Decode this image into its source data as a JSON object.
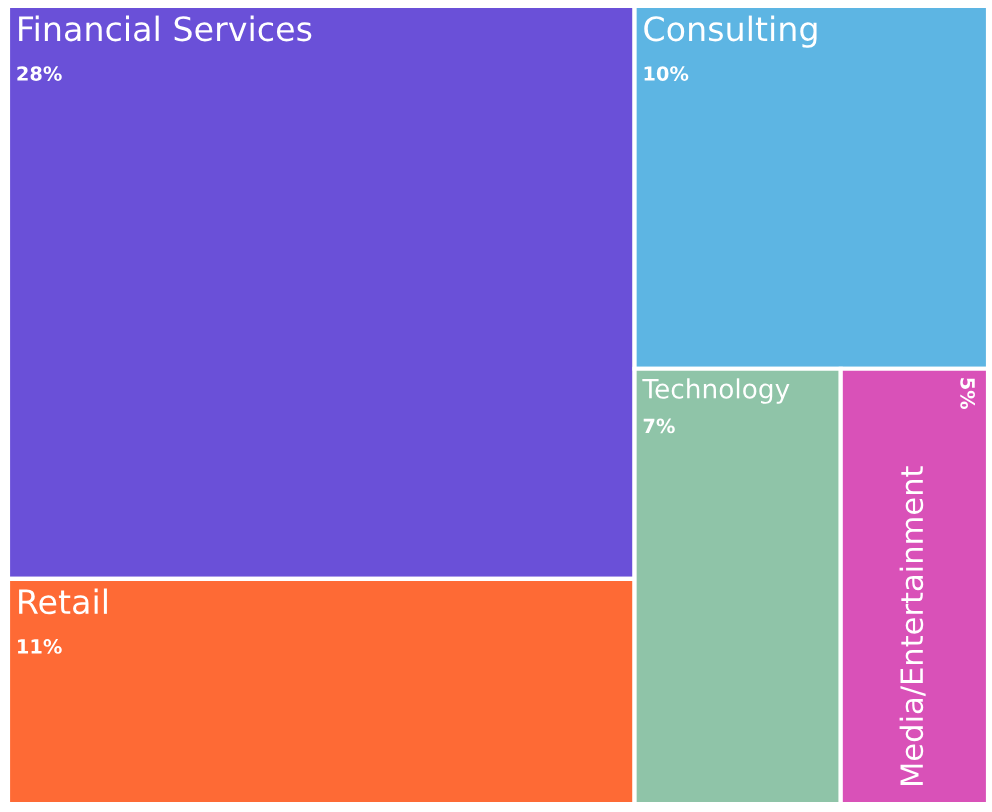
{
  "chart_data": {
    "type": "other",
    "categories": [
      "Financial Services",
      "Retail",
      "Consulting",
      "Technology",
      "Media/Entertainment"
    ],
    "values": [
      28,
      11,
      10,
      7,
      5
    ],
    "value_labels": [
      "28%",
      "11%",
      "10%",
      "7%",
      "5%"
    ],
    "colors": [
      "#6a50d8",
      "#fe6a35",
      "#5db5e3",
      "#8fc4a8",
      "#d951b8"
    ]
  }
}
